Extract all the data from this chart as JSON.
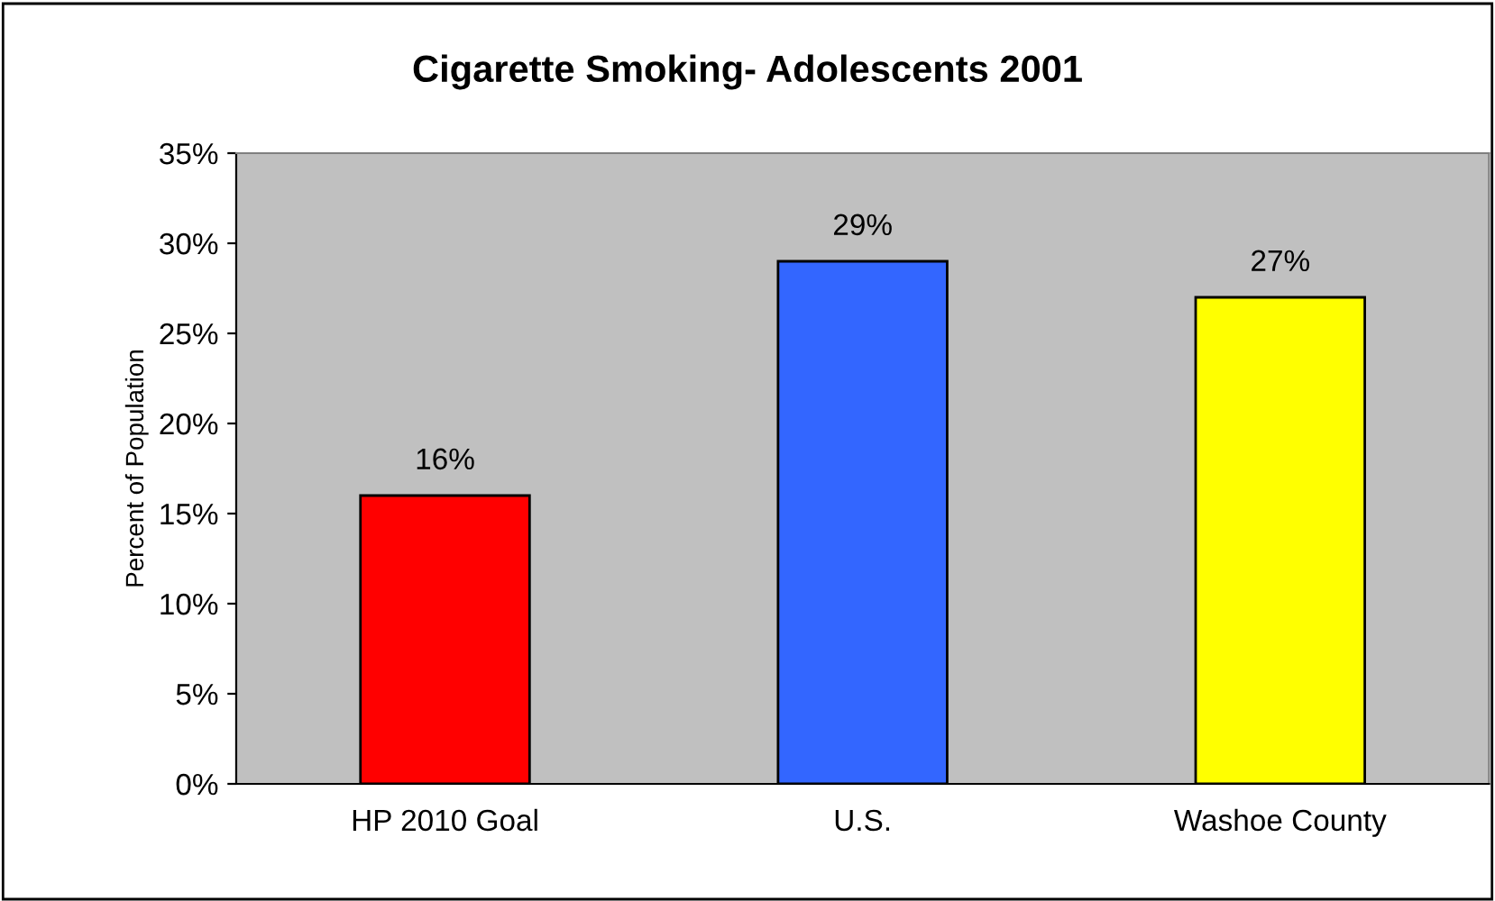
{
  "chart_data": {
    "type": "bar",
    "title": "Cigarette Smoking- Adolescents 2001",
    "ylabel": "Percent of Population",
    "categories": [
      "HP 2010 Goal",
      "U.S.",
      "Washoe County"
    ],
    "values": [
      16,
      29,
      27
    ],
    "colors": [
      "#ff0000",
      "#3366ff",
      "#ffff00"
    ],
    "value_labels": [
      "16%",
      "29%",
      "27%"
    ],
    "ylim": [
      0,
      35
    ],
    "yticks": [
      {
        "value": 0,
        "label": "0%"
      },
      {
        "value": 5,
        "label": "5%"
      },
      {
        "value": 10,
        "label": "10%"
      },
      {
        "value": 15,
        "label": "15%"
      },
      {
        "value": 20,
        "label": "20%"
      },
      {
        "value": 25,
        "label": "25%"
      },
      {
        "value": 30,
        "label": "30%"
      },
      {
        "value": 35,
        "label": "35%"
      }
    ],
    "grid": false,
    "legend": false
  }
}
